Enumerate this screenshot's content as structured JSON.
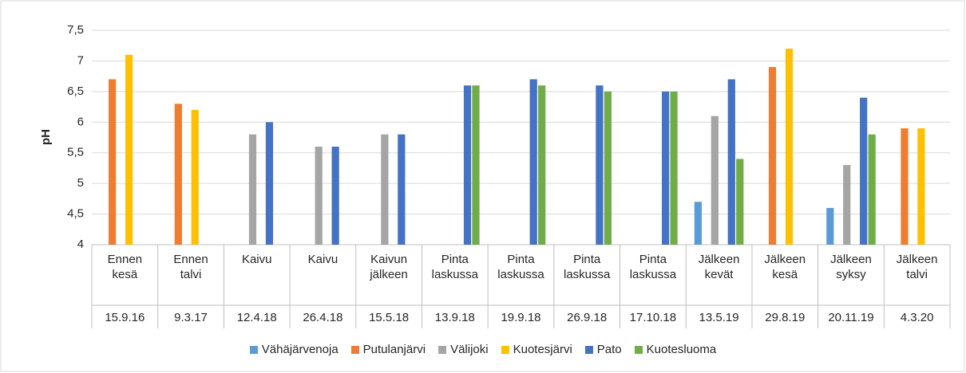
{
  "chart_data": {
    "type": "bar",
    "y_label": "pH",
    "categories": [
      "Ennen kesä",
      "Ennen talvi",
      "Kaivu",
      "Kaivu",
      "Kaivun jälkeen",
      "Pinta laskussa",
      "Pinta laskussa",
      "Pinta laskussa",
      "Pinta laskussa",
      "Jälkeen kevät",
      "Jälkeen kesä",
      "Jälkeen syksy",
      "Jälkeen talvi"
    ],
    "dates": [
      "15.9.16",
      "9.3.17",
      "12.4.18",
      "26.4.18",
      "15.5.18",
      "13.9.18",
      "19.9.18",
      "26.9.18",
      "17.10.18",
      "13.5.19",
      "29.8.19",
      "20.11.19",
      "4.3.20"
    ],
    "series": [
      {
        "name": "Vähäjärvenoja",
        "color": "#5b9bd5",
        "values": [
          null,
          null,
          null,
          null,
          null,
          null,
          null,
          null,
          null,
          4.7,
          null,
          4.6,
          null
        ]
      },
      {
        "name": "Putulanjärvi",
        "color": "#ed7d31",
        "values": [
          6.7,
          6.3,
          null,
          null,
          null,
          null,
          null,
          null,
          null,
          null,
          6.9,
          null,
          5.9
        ]
      },
      {
        "name": "Välijoki",
        "color": "#a5a5a5",
        "values": [
          null,
          null,
          5.8,
          5.6,
          5.8,
          null,
          null,
          null,
          null,
          6.1,
          null,
          5.3,
          null
        ]
      },
      {
        "name": "Kuotesjärvi",
        "color": "#ffc000",
        "values": [
          7.1,
          6.2,
          null,
          null,
          null,
          null,
          null,
          null,
          null,
          null,
          7.2,
          null,
          5.9
        ]
      },
      {
        "name": "Pato",
        "color": "#4472c4",
        "values": [
          null,
          null,
          6.0,
          5.6,
          5.8,
          6.6,
          6.7,
          6.6,
          6.5,
          6.7,
          null,
          6.4,
          null
        ]
      },
      {
        "name": "Kuotesluoma",
        "color": "#70ad47",
        "values": [
          null,
          null,
          null,
          null,
          null,
          6.6,
          6.6,
          6.5,
          6.5,
          5.4,
          null,
          5.8,
          null
        ]
      }
    ],
    "ylim": [
      4,
      7.5
    ],
    "yticks": [
      4,
      {
        "value": 4.5,
        "label": "4,5"
      },
      5,
      {
        "value": 5.5,
        "label": "5,5"
      },
      6,
      {
        "value": 6.5,
        "label": "6,5"
      },
      7,
      {
        "value": 7.5,
        "label": "7,5"
      }
    ],
    "grid": true,
    "legend": "bottom"
  }
}
